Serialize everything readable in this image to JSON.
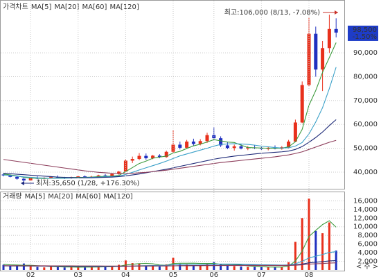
{
  "chart_data": [
    {
      "type": "candlestick",
      "title": "가격차트",
      "up_color": "#e8301c",
      "down_color": "#2030c0",
      "open": [
        39000,
        38600,
        38000,
        37200,
        36500,
        37500,
        37300,
        37600,
        38000,
        37700,
        37400,
        37900,
        38200,
        37800,
        38100,
        38600,
        38400,
        39200,
        40200,
        44800,
        45500,
        46800,
        45800,
        46900,
        46300,
        48500,
        51500,
        50200,
        52800,
        51800,
        53000,
        55500,
        54200,
        51200,
        50100,
        50800,
        49900,
        50300,
        50000,
        49700,
        50200,
        49800,
        50400,
        52800,
        60800,
        76500,
        98000,
        83000,
        92000,
        100000
      ],
      "high": [
        39500,
        39000,
        38400,
        37600,
        37800,
        38200,
        37900,
        38300,
        38600,
        38000,
        38100,
        38500,
        38600,
        38400,
        38900,
        39200,
        39500,
        40500,
        45500,
        46500,
        48000,
        47800,
        47200,
        47500,
        49000,
        57500,
        52800,
        53500,
        54000,
        53800,
        56500,
        58800,
        55000,
        52500,
        51500,
        51800,
        50900,
        51400,
        50800,
        50600,
        51200,
        50900,
        53500,
        62000,
        78000,
        105000,
        101000,
        95000,
        106000,
        104500
      ],
      "low": [
        38200,
        37800,
        36800,
        35650,
        36300,
        37000,
        36900,
        37200,
        37400,
        37100,
        37200,
        37500,
        37600,
        37500,
        37900,
        38200,
        38200,
        38900,
        40000,
        43800,
        45000,
        45200,
        45400,
        45800,
        46000,
        48000,
        49500,
        49800,
        51000,
        51200,
        52200,
        53500,
        50500,
        49600,
        49000,
        49500,
        49200,
        49600,
        49300,
        49100,
        49500,
        49400,
        49900,
        52500,
        60500,
        76000,
        80000,
        74000,
        90000,
        96500
      ],
      "close": [
        38600,
        38000,
        37200,
        36500,
        37500,
        37300,
        37600,
        38000,
        37700,
        37400,
        37900,
        38200,
        37800,
        38100,
        38600,
        38400,
        39200,
        40200,
        44800,
        45500,
        46800,
        45800,
        46900,
        46300,
        48500,
        51500,
        50200,
        52800,
        51800,
        53000,
        55500,
        54200,
        51200,
        50100,
        50800,
        49900,
        50300,
        50000,
        49700,
        50200,
        49800,
        50400,
        52800,
        60800,
        76500,
        98000,
        83000,
        92000,
        100000,
        98500
      ],
      "series": [
        {
          "name": "MA[5]",
          "color": "#3c9a3c",
          "values": [
            39200,
            38800,
            38400,
            37800,
            37500,
            37400,
            37300,
            37400,
            37500,
            37600,
            37700,
            37800,
            37800,
            37900,
            38100,
            38200,
            38300,
            38600,
            40200,
            41900,
            43600,
            44600,
            45800,
            46300,
            46700,
            48000,
            48700,
            49900,
            51000,
            51700,
            52600,
            53600,
            53100,
            52600,
            52400,
            51300,
            50300,
            50200,
            50100,
            50000,
            50000,
            50000,
            50600,
            52700,
            57900,
            68000,
            74200,
            81800,
            88000,
            94300
          ]
        },
        {
          "name": "MA[20]",
          "color": "#3aa0c8",
          "values": [
            38800,
            38600,
            38300,
            38000,
            37800,
            37600,
            37500,
            37400,
            37400,
            37400,
            37500,
            37600,
            37700,
            37800,
            37900,
            38000,
            38100,
            38300,
            39000,
            39900,
            40900,
            41800,
            42700,
            43600,
            44600,
            45700,
            46800,
            47600,
            48400,
            49200,
            50000,
            50900,
            51600,
            51800,
            51900,
            51800,
            51600,
            51300,
            50900,
            50600,
            50300,
            50100,
            50200,
            50900,
            52400,
            56000,
            61000,
            67000,
            75000,
            84000
          ]
        },
        {
          "name": "MA[60]",
          "color": "#1e2a78",
          "values": [
            39500,
            39300,
            39100,
            38900,
            38700,
            38500,
            38300,
            38100,
            37900,
            37800,
            37700,
            37600,
            37600,
            37600,
            37700,
            37800,
            37900,
            38100,
            38400,
            38800,
            39200,
            39700,
            40200,
            40700,
            41200,
            41800,
            42400,
            43000,
            43600,
            44200,
            44800,
            45400,
            45900,
            46300,
            46700,
            47000,
            47300,
            47600,
            47900,
            48100,
            48300,
            48500,
            48800,
            49500,
            50700,
            52500,
            54500,
            56800,
            59500,
            62000
          ]
        },
        {
          "name": "MA[120]",
          "color": "#8c3c5a",
          "values": [
            45300,
            44900,
            44500,
            44100,
            43700,
            43300,
            42900,
            42500,
            42100,
            41700,
            41300,
            40900,
            40500,
            40200,
            39900,
            39700,
            39500,
            39400,
            39400,
            39500,
            39700,
            39900,
            40200,
            40500,
            40800,
            41200,
            41600,
            42000,
            42400,
            42800,
            43200,
            43600,
            44000,
            44300,
            44600,
            44900,
            45200,
            45500,
            45800,
            46100,
            46400,
            46800,
            47200,
            47800,
            48500,
            49500,
            50500,
            51500,
            52500,
            53300
          ]
        }
      ],
      "ylim": [
        33000,
        111000
      ],
      "yticks": [
        {
          "value": 40000,
          "label": "40,000"
        },
        {
          "value": 50000,
          "label": "50,000"
        },
        {
          "value": 60000,
          "label": "60,000"
        },
        {
          "value": 70000,
          "label": "70,000"
        },
        {
          "value": 80000,
          "label": "80,000"
        },
        {
          "value": 90000,
          "label": "90,000"
        }
      ],
      "grid": true,
      "high_annotation": "최고:106,000 (8/13, -7.08%)",
      "low_annotation": "최저:35,650 (1/28, +176.30%)",
      "last_price": {
        "value": 98500,
        "label": "98,500"
      },
      "last_change": "-1.50%"
    },
    {
      "type": "bar",
      "title": "거래량",
      "categories": [
        null,
        null,
        null,
        null,
        "02",
        null,
        null,
        null,
        null,
        null,
        null,
        "03",
        null,
        null,
        null,
        null,
        null,
        null,
        "04",
        null,
        null,
        null,
        null,
        null,
        null,
        "05",
        null,
        null,
        null,
        null,
        null,
        "06",
        null,
        null,
        null,
        null,
        null,
        null,
        "07",
        null,
        null,
        null,
        null,
        null,
        null,
        "08",
        null,
        null,
        null,
        null
      ],
      "values": [
        1200,
        900,
        1100,
        1500,
        800,
        700,
        600,
        900,
        700,
        600,
        650,
        700,
        600,
        650,
        800,
        700,
        900,
        1200,
        2200,
        1600,
        1500,
        1000,
        900,
        800,
        1300,
        2800,
        1400,
        1300,
        1100,
        1000,
        1400,
        1800,
        1300,
        1100,
        900,
        800,
        700,
        700,
        650,
        700,
        650,
        700,
        1800,
        6500,
        12000,
        16500,
        9000,
        8500,
        11000,
        4500
      ],
      "series": [
        {
          "name": "MA[5]",
          "color": "#3c9a3c",
          "values": [
            1300,
            1200,
            1150,
            1100,
            1100,
            1000,
            920,
            820,
            760,
            700,
            690,
            650,
            670,
            680,
            690,
            730,
            750,
            850,
            1160,
            1320,
            1480,
            1540,
            1440,
            1160,
            1100,
            1500,
            1560,
            1560,
            1580,
            1520,
            1520,
            1520,
            1320,
            1340,
            1300,
            1180,
            960,
            840,
            750,
            690,
            680,
            670,
            900,
            2070,
            4330,
            7760,
            9160,
            10500,
            11400,
            9900
          ]
        },
        {
          "name": "MA[20]",
          "color": "#3aa0c8",
          "values": [
            1000,
            980,
            960,
            950,
            940,
            930,
            900,
            880,
            860,
            840,
            820,
            800,
            790,
            780,
            780,
            780,
            790,
            820,
            880,
            920,
            970,
            1010,
            1040,
            1060,
            1090,
            1190,
            1230,
            1270,
            1290,
            1300,
            1320,
            1360,
            1380,
            1380,
            1370,
            1350,
            1300,
            1250,
            1200,
            1170,
            1150,
            1120,
            1160,
            1440,
            1990,
            2780,
            3180,
            3570,
            4050,
            4250
          ]
        },
        {
          "name": "MA[60]",
          "color": "#1e2a78",
          "values": [
            950,
            940,
            930,
            920,
            910,
            900,
            890,
            880,
            870,
            860,
            850,
            840,
            835,
            830,
            830,
            830,
            830,
            835,
            850,
            870,
            890,
            905,
            915,
            925,
            935,
            965,
            990,
            1010,
            1030,
            1045,
            1060,
            1075,
            1085,
            1095,
            1100,
            1100,
            1095,
            1090,
            1085,
            1080,
            1075,
            1070,
            1085,
            1180,
            1370,
            1650,
            1790,
            1920,
            2100,
            2180
          ]
        },
        {
          "name": "MA[120]",
          "color": "#8c3c5a",
          "values": [
            1000,
            995,
            990,
            985,
            980,
            975,
            970,
            965,
            960,
            955,
            950,
            945,
            940,
            935,
            930,
            925,
            920,
            918,
            920,
            925,
            930,
            935,
            940,
            945,
            950,
            960,
            970,
            980,
            990,
            1000,
            1010,
            1020,
            1025,
            1030,
            1035,
            1040,
            1040,
            1040,
            1040,
            1040,
            1040,
            1040,
            1050,
            1100,
            1200,
            1350,
            1430,
            1500,
            1600,
            1650
          ]
        }
      ],
      "ylim": [
        0,
        17500
      ],
      "yticks": [
        {
          "value": 2000,
          "label": "2,000"
        },
        {
          "value": 4000,
          "label": "4,000"
        },
        {
          "value": 6000,
          "label": "6,000"
        },
        {
          "value": 8000,
          "label": "8,000"
        },
        {
          "value": 10000,
          "label": "10,000"
        },
        {
          "value": 12000,
          "label": "12,000"
        },
        {
          "value": 14000,
          "label": "14,000"
        },
        {
          "value": 16000,
          "label": "16,000"
        }
      ],
      "grid": true,
      "unit_label": "< 주 >"
    }
  ]
}
